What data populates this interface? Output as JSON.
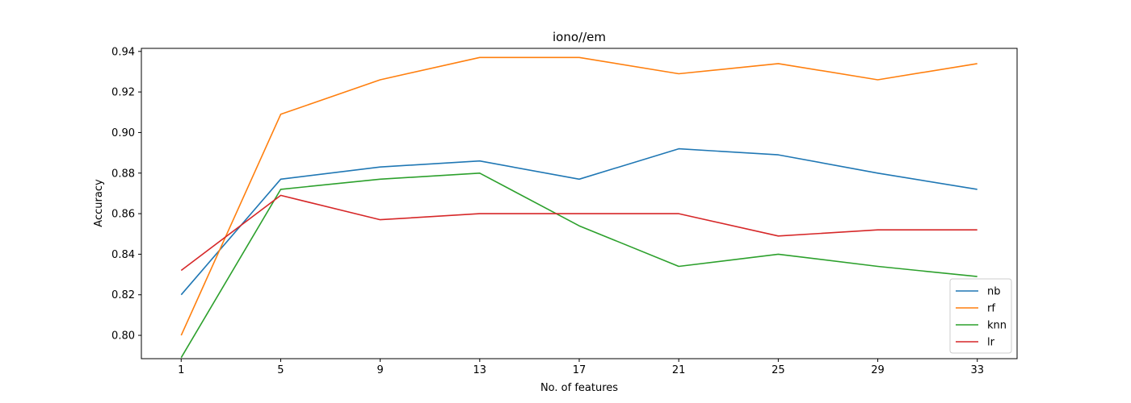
{
  "chart_data": {
    "type": "line",
    "title": "iono//em",
    "xlabel": "No. of features",
    "ylabel": "Accuracy",
    "x": [
      1,
      5,
      9,
      13,
      17,
      21,
      25,
      29,
      33
    ],
    "x_tick_labels": [
      "1",
      "5",
      "9",
      "13",
      "17",
      "21",
      "25",
      "29",
      "33"
    ],
    "ylim": [
      0.7885,
      0.9415
    ],
    "y_ticks": [
      0.8,
      0.82,
      0.84,
      0.86,
      0.88,
      0.9,
      0.92,
      0.94
    ],
    "y_tick_labels": [
      "0.80",
      "0.82",
      "0.84",
      "0.86",
      "0.88",
      "0.90",
      "0.92",
      "0.94"
    ],
    "grid": false,
    "legend_position": "lower-right",
    "series": [
      {
        "name": "nb",
        "color": "#1f77b4",
        "values": [
          0.82,
          0.877,
          0.883,
          0.886,
          0.877,
          0.892,
          0.889,
          0.88,
          0.872
        ]
      },
      {
        "name": "rf",
        "color": "#ff7f0e",
        "values": [
          0.8,
          0.909,
          0.926,
          0.937,
          0.937,
          0.929,
          0.934,
          0.926,
          0.934
        ]
      },
      {
        "name": "knn",
        "color": "#2ca02c",
        "values": [
          0.789,
          0.872,
          0.877,
          0.88,
          0.854,
          0.834,
          0.84,
          0.834,
          0.829
        ]
      },
      {
        "name": "lr",
        "color": "#d62728",
        "values": [
          0.832,
          0.869,
          0.857,
          0.86,
          0.86,
          0.86,
          0.849,
          0.852,
          0.852
        ]
      }
    ]
  }
}
